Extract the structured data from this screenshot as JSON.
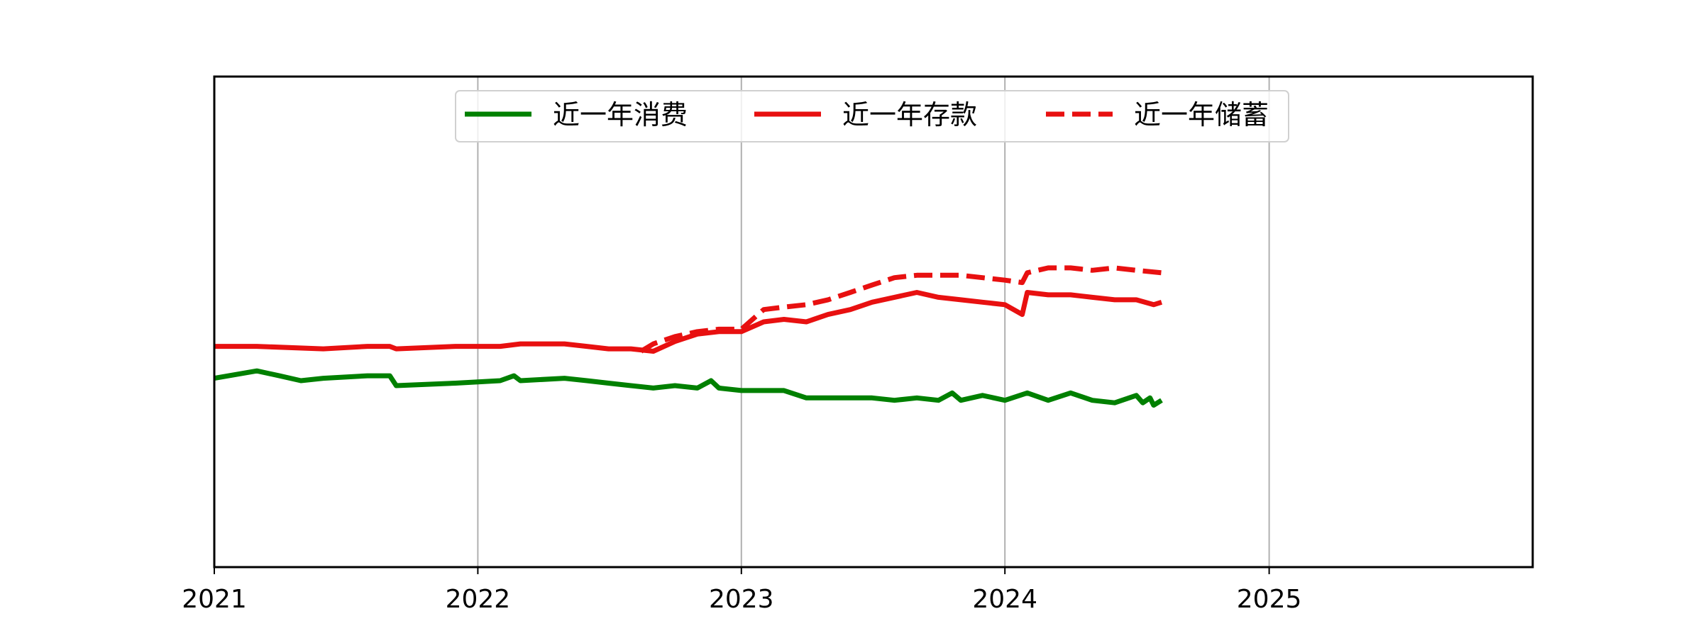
{
  "chart_data": {
    "type": "line",
    "title": "",
    "xlabel": "",
    "ylabel": "",
    "x_ticks": [
      "2021",
      "2022",
      "2023",
      "2024",
      "2025"
    ],
    "xlim": [
      "2021-01-01",
      "2026-01-01"
    ],
    "ylim": [
      -100,
      100
    ],
    "y_ticks_visible": false,
    "grid": "x-axis only",
    "legend": {
      "placement": "upper center",
      "columns": 3
    },
    "series": [
      {
        "name": "近一年消费",
        "color": "#008000",
        "style": "solid",
        "points": [
          [
            "2021-01-01",
            -23
          ],
          [
            "2021-03-01",
            -20
          ],
          [
            "2021-04-01",
            -22
          ],
          [
            "2021-05-01",
            -24
          ],
          [
            "2021-06-01",
            -23
          ],
          [
            "2021-08-01",
            -22
          ],
          [
            "2021-09-01",
            -22
          ],
          [
            "2021-09-10",
            -26
          ],
          [
            "2021-12-01",
            -25
          ],
          [
            "2022-02-01",
            -24
          ],
          [
            "2022-02-20",
            -22
          ],
          [
            "2022-03-01",
            -24
          ],
          [
            "2022-05-01",
            -23
          ],
          [
            "2022-06-01",
            -24
          ],
          [
            "2022-07-01",
            -25
          ],
          [
            "2022-08-01",
            -26
          ],
          [
            "2022-09-01",
            -27
          ],
          [
            "2022-10-01",
            -26
          ],
          [
            "2022-11-01",
            -27
          ],
          [
            "2022-11-20",
            -24
          ],
          [
            "2022-12-01",
            -27
          ],
          [
            "2023-01-01",
            -28
          ],
          [
            "2023-03-01",
            -28
          ],
          [
            "2023-04-01",
            -31
          ],
          [
            "2023-05-01",
            -31
          ],
          [
            "2023-07-01",
            -31
          ],
          [
            "2023-08-01",
            -32
          ],
          [
            "2023-09-01",
            -31
          ],
          [
            "2023-10-01",
            -32
          ],
          [
            "2023-10-20",
            -29
          ],
          [
            "2023-11-01",
            -32
          ],
          [
            "2023-12-01",
            -30
          ],
          [
            "2024-01-01",
            -32
          ],
          [
            "2024-02-01",
            -29
          ],
          [
            "2024-03-01",
            -32
          ],
          [
            "2024-04-01",
            -29
          ],
          [
            "2024-05-01",
            -32
          ],
          [
            "2024-06-01",
            -33
          ],
          [
            "2024-07-01",
            -30
          ],
          [
            "2024-07-10",
            -33
          ],
          [
            "2024-07-20",
            -31
          ],
          [
            "2024-07-25",
            -34
          ],
          [
            "2024-08-05",
            -32
          ]
        ]
      },
      {
        "name": "近一年存款",
        "color": "#e81010",
        "style": "solid",
        "points": [
          [
            "2021-01-01",
            -10
          ],
          [
            "2021-03-01",
            -10
          ],
          [
            "2021-06-01",
            -11
          ],
          [
            "2021-08-01",
            -10
          ],
          [
            "2021-09-01",
            -10
          ],
          [
            "2021-09-10",
            -11
          ],
          [
            "2021-12-01",
            -10
          ],
          [
            "2022-02-01",
            -10
          ],
          [
            "2022-03-01",
            -9
          ],
          [
            "2022-05-01",
            -9
          ],
          [
            "2022-06-01",
            -10
          ],
          [
            "2022-07-01",
            -11
          ],
          [
            "2022-08-01",
            -11
          ],
          [
            "2022-09-01",
            -12
          ],
          [
            "2022-10-01",
            -8
          ],
          [
            "2022-11-01",
            -5
          ],
          [
            "2022-12-01",
            -4
          ],
          [
            "2023-01-01",
            -4
          ],
          [
            "2023-02-01",
            0
          ],
          [
            "2023-03-01",
            1
          ],
          [
            "2023-04-01",
            0
          ],
          [
            "2023-05-01",
            3
          ],
          [
            "2023-06-01",
            5
          ],
          [
            "2023-07-01",
            8
          ],
          [
            "2023-08-01",
            10
          ],
          [
            "2023-09-01",
            12
          ],
          [
            "2023-10-01",
            10
          ],
          [
            "2023-11-01",
            9
          ],
          [
            "2023-12-01",
            8
          ],
          [
            "2024-01-01",
            7
          ],
          [
            "2024-01-25",
            3
          ],
          [
            "2024-02-01",
            12
          ],
          [
            "2024-03-01",
            11
          ],
          [
            "2024-04-01",
            11
          ],
          [
            "2024-05-01",
            10
          ],
          [
            "2024-06-01",
            9
          ],
          [
            "2024-07-01",
            9
          ],
          [
            "2024-07-25",
            7
          ],
          [
            "2024-08-05",
            8
          ]
        ]
      },
      {
        "name": "近一年储蓄",
        "color": "#e81010",
        "style": "dashed",
        "points": [
          [
            "2022-08-15",
            -12
          ],
          [
            "2022-09-01",
            -9
          ],
          [
            "2022-10-01",
            -6
          ],
          [
            "2022-11-01",
            -4
          ],
          [
            "2022-12-01",
            -3
          ],
          [
            "2023-01-01",
            -3
          ],
          [
            "2023-02-01",
            5
          ],
          [
            "2023-03-01",
            6
          ],
          [
            "2023-04-01",
            7
          ],
          [
            "2023-05-01",
            9
          ],
          [
            "2023-06-01",
            12
          ],
          [
            "2023-07-01",
            15
          ],
          [
            "2023-08-01",
            18
          ],
          [
            "2023-09-01",
            19
          ],
          [
            "2023-10-01",
            19
          ],
          [
            "2023-11-01",
            19
          ],
          [
            "2023-12-01",
            18
          ],
          [
            "2024-01-01",
            17
          ],
          [
            "2024-01-25",
            16
          ],
          [
            "2024-02-01",
            20
          ],
          [
            "2024-03-01",
            22
          ],
          [
            "2024-04-01",
            22
          ],
          [
            "2024-05-01",
            21
          ],
          [
            "2024-06-01",
            22
          ],
          [
            "2024-07-01",
            21
          ],
          [
            "2024-08-05",
            20
          ]
        ]
      }
    ]
  }
}
